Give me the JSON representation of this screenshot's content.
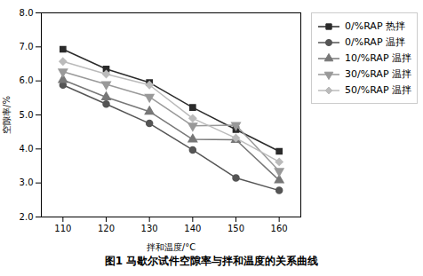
{
  "chart_data": {
    "type": "line",
    "caption": "图1  马歇尔试件空隙率与拌和温度的关系曲线",
    "x_label": "拌和温度/°C",
    "y_label": "空隙率/%",
    "x": [
      110,
      120,
      130,
      140,
      150,
      160
    ],
    "series": [
      {
        "name": "0/%RAP 热拌",
        "color": "#2b2b2b",
        "marker": "square",
        "line_style": "solid",
        "values": [
          6.93,
          6.35,
          5.95,
          5.22,
          4.57,
          3.93
        ]
      },
      {
        "name": "0/%RAP 温拌",
        "color": "#555555",
        "marker": "circle",
        "line_style": "solid",
        "values": [
          5.88,
          5.32,
          4.75,
          3.97,
          3.15,
          2.78
        ]
      },
      {
        "name": "10/%RAP 温拌",
        "color": "#777777",
        "marker": "triangle-up",
        "line_style": "solid",
        "values": [
          6.03,
          5.52,
          5.1,
          4.28,
          4.27,
          3.08
        ]
      },
      {
        "name": "30/%RAP 温拌",
        "color": "#999999",
        "marker": "triangle-down",
        "line_style": "solid",
        "values": [
          6.27,
          5.9,
          5.53,
          4.68,
          4.7,
          3.35
        ]
      },
      {
        "name": "50/%RAP 温拌",
        "color": "#bbbbbb",
        "marker": "diamond",
        "line_style": "solid",
        "values": [
          6.57,
          6.2,
          5.88,
          4.9,
          4.32,
          3.62
        ]
      }
    ],
    "xlim": [
      105,
      165
    ],
    "xticks": [
      110,
      120,
      130,
      140,
      150,
      160
    ],
    "ylim": [
      2,
      8
    ],
    "yticks": [
      2,
      3,
      4,
      5,
      6,
      7,
      8
    ],
    "grid": false,
    "legend": "right"
  }
}
